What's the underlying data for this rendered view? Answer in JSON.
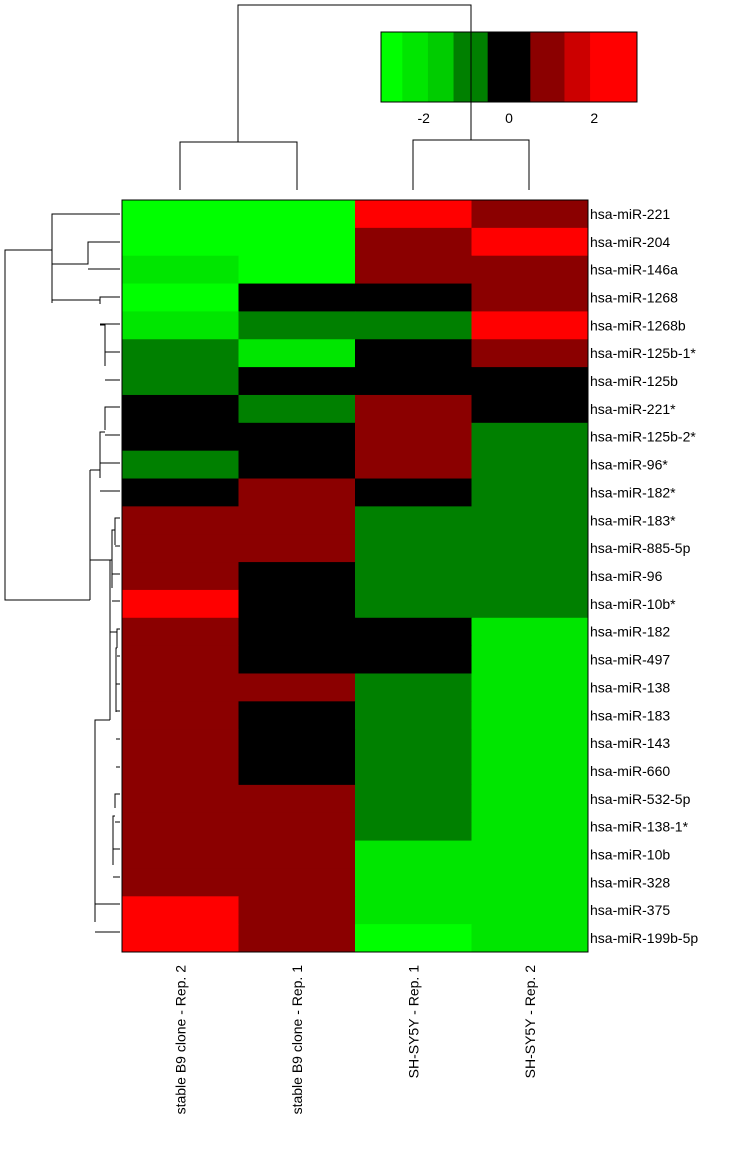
{
  "chart_data": {
    "type": "heatmap",
    "title": "",
    "xlabel": "",
    "ylabel": "",
    "columns": [
      "stable B9 clone - Rep. 2",
      "stable B9 clone - Rep. 1",
      "SH-SY5Y - Rep. 1",
      "SH-SY5Y - Rep. 2"
    ],
    "rows": [
      "hsa-miR-221",
      "hsa-miR-204",
      "hsa-miR-146a",
      "hsa-miR-1268",
      "hsa-miR-1268b",
      "hsa-miR-125b-1*",
      "hsa-miR-125b",
      "hsa-miR-221*",
      "hsa-miR-125b-2*",
      "hsa-miR-96*",
      "hsa-miR-182*",
      "hsa-miR-183*",
      "hsa-miR-885-5p",
      "hsa-miR-96",
      "hsa-miR-10b*",
      "hsa-miR-182",
      "hsa-miR-497",
      "hsa-miR-138",
      "hsa-miR-183",
      "hsa-miR-143",
      "hsa-miR-660",
      "hsa-miR-532-5p",
      "hsa-miR-138-1*",
      "hsa-miR-10b",
      "hsa-miR-328",
      "hsa-miR-375",
      "hsa-miR-199b-5p"
    ],
    "values": [
      [
        -2.8,
        -2.8,
        2.2,
        1.0
      ],
      [
        -2.8,
        -2.6,
        1.0,
        2.2
      ],
      [
        -2.2,
        -2.6,
        1.0,
        1.0
      ],
      [
        -2.8,
        0,
        0,
        1.0
      ],
      [
        -2.2,
        -1.0,
        -1.0,
        2.2
      ],
      [
        -1.0,
        -2.2,
        0,
        1.0
      ],
      [
        -1.0,
        0,
        0,
        0
      ],
      [
        0,
        -1.0,
        1.0,
        0
      ],
      [
        0,
        0,
        1.0,
        -1.0
      ],
      [
        -1.0,
        0,
        1.0,
        -1.0
      ],
      [
        0,
        1.0,
        0,
        -1.0
      ],
      [
        1.0,
        1.0,
        -1.0,
        -1.0
      ],
      [
        1.0,
        1.0,
        -1.0,
        -1.0
      ],
      [
        1.0,
        0,
        -1.0,
        -1.0
      ],
      [
        2.2,
        0,
        -1.0,
        -1.0
      ],
      [
        1.0,
        0,
        0,
        -2.2
      ],
      [
        1.0,
        0,
        0,
        -2.2
      ],
      [
        1.0,
        1.0,
        -1.0,
        -2.2
      ],
      [
        1.0,
        0,
        -1.0,
        -2.2
      ],
      [
        1.0,
        0,
        -1.0,
        -2.2
      ],
      [
        1.0,
        0,
        -1.0,
        -2.2
      ],
      [
        1.0,
        1.0,
        -1.0,
        -2.2
      ],
      [
        1.0,
        1.0,
        -1.0,
        -2.2
      ],
      [
        1.0,
        1.0,
        -2.2,
        -2.2
      ],
      [
        1.0,
        1.0,
        -2.2,
        -2.2
      ],
      [
        2.2,
        1.0,
        -2.2,
        -2.2
      ],
      [
        2.2,
        1.0,
        -2.8,
        -2.2
      ]
    ],
    "color_key": {
      "ticks": [
        "-2",
        "0",
        "2"
      ],
      "tick_values": [
        -2,
        0,
        2
      ],
      "range": [
        -3,
        3
      ],
      "bins": [
        {
          "value": -2.8,
          "color": "#00ff00"
        },
        {
          "value": -2.2,
          "color": "#00e600"
        },
        {
          "value": -1.6,
          "color": "#00cc00"
        },
        {
          "value": -1.0,
          "color": "#008000"
        },
        {
          "value": 0,
          "color": "#000000"
        },
        {
          "value": 1.0,
          "color": "#8b0000"
        },
        {
          "value": 1.6,
          "color": "#cc0000"
        },
        {
          "value": 2.2,
          "color": "#ff0000"
        },
        {
          "value": 2.8,
          "color": "#ff0000"
        }
      ]
    },
    "color_scale": [
      {
        "max": -2.5,
        "color": "#00ff00"
      },
      {
        "max": -1.8,
        "color": "#00e600"
      },
      {
        "max": -1.3,
        "color": "#00cc00"
      },
      {
        "max": -0.5,
        "color": "#008000"
      },
      {
        "max": 0.5,
        "color": "#000000"
      },
      {
        "max": 1.3,
        "color": "#8b0000"
      },
      {
        "max": 1.8,
        "color": "#cc0000"
      },
      {
        "max": 99,
        "color": "#ff0000"
      }
    ],
    "grid": false,
    "dendrograms": {
      "rows": true,
      "columns": true
    }
  }
}
